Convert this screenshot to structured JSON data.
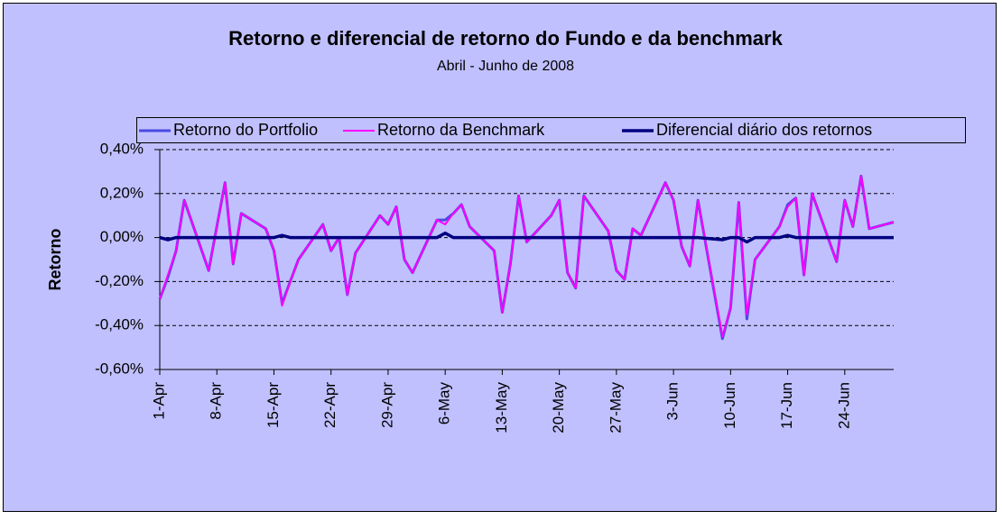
{
  "chart_data": {
    "type": "line",
    "title": "Retorno e diferencial de retorno do Fundo e da benchmark",
    "subtitle": "Abril - Junho de 2008",
    "ylabel": "Retorno",
    "x": [
      "1-Apr",
      "2-Apr",
      "3-Apr",
      "4-Apr",
      "7-Apr",
      "8-Apr",
      "9-Apr",
      "10-Apr",
      "11-Apr",
      "14-Apr",
      "15-Apr",
      "16-Apr",
      "17-Apr",
      "18-Apr",
      "21-Apr",
      "22-Apr",
      "23-Apr",
      "24-Apr",
      "25-Apr",
      "28-Apr",
      "29-Apr",
      "30-Apr",
      "1-May",
      "2-May",
      "5-May",
      "6-May",
      "7-May",
      "8-May",
      "9-May",
      "12-May",
      "13-May",
      "14-May",
      "15-May",
      "16-May",
      "19-May",
      "20-May",
      "21-May",
      "22-May",
      "23-May",
      "26-May",
      "27-May",
      "28-May",
      "29-May",
      "30-May",
      "2-Jun",
      "3-Jun",
      "4-Jun",
      "5-Jun",
      "6-Jun",
      "9-Jun",
      "10-Jun",
      "11-Jun",
      "12-Jun",
      "13-Jun",
      "16-Jun",
      "17-Jun",
      "18-Jun",
      "19-Jun",
      "20-Jun",
      "23-Jun",
      "24-Jun",
      "25-Jun",
      "26-Jun",
      "27-Jun",
      "30-Jun"
    ],
    "series": [
      {
        "name": "Retorno do Portfolio",
        "color": "#4a4ae0",
        "width": 3,
        "values": [
          -0.28,
          -0.18,
          -0.06,
          0.17,
          -0.15,
          0.05,
          0.25,
          -0.12,
          0.11,
          0.04,
          -0.06,
          -0.3,
          -0.2,
          -0.1,
          0.06,
          -0.06,
          0.0,
          -0.26,
          -0.07,
          0.1,
          0.06,
          0.14,
          -0.1,
          -0.16,
          0.08,
          0.08,
          0.11,
          0.15,
          0.05,
          -0.06,
          -0.34,
          -0.12,
          0.19,
          -0.02,
          0.1,
          0.17,
          -0.16,
          -0.23,
          0.19,
          0.03,
          -0.15,
          -0.19,
          0.04,
          0.01,
          0.25,
          0.17,
          -0.04,
          -0.13,
          0.17,
          -0.46,
          -0.32,
          0.16,
          -0.37,
          -0.1,
          0.05,
          0.15,
          0.18,
          -0.17,
          0.2,
          -0.11,
          0.17,
          0.05,
          0.28,
          0.04,
          0.07
        ]
      },
      {
        "name": "Retorno da Benchmark",
        "color": "#ff00ff",
        "width": 2,
        "values": [
          -0.28,
          -0.17,
          -0.06,
          0.17,
          -0.15,
          0.05,
          0.25,
          -0.12,
          0.11,
          0.04,
          -0.06,
          -0.31,
          -0.2,
          -0.1,
          0.06,
          -0.06,
          0.0,
          -0.26,
          -0.07,
          0.1,
          0.06,
          0.14,
          -0.1,
          -0.16,
          0.08,
          0.06,
          0.11,
          0.15,
          0.05,
          -0.06,
          -0.34,
          -0.12,
          0.19,
          -0.02,
          0.1,
          0.17,
          -0.16,
          -0.23,
          0.19,
          0.03,
          -0.15,
          -0.19,
          0.04,
          0.01,
          0.25,
          0.17,
          -0.04,
          -0.13,
          0.17,
          -0.45,
          -0.32,
          0.16,
          -0.35,
          -0.1,
          0.05,
          0.14,
          0.18,
          -0.17,
          0.2,
          -0.11,
          0.17,
          0.05,
          0.28,
          0.04,
          0.07
        ]
      },
      {
        "name": "Diferencial diário dos retornos",
        "color": "#000080",
        "width": 3.5,
        "values": [
          0.0,
          -0.01,
          0.0,
          0.0,
          0.0,
          0.0,
          0.0,
          0.0,
          0.0,
          0.0,
          0.0,
          0.01,
          0.0,
          0.0,
          0.0,
          0.0,
          0.0,
          0.0,
          0.0,
          0.0,
          0.0,
          0.0,
          0.0,
          0.0,
          0.0,
          0.02,
          0.0,
          0.0,
          0.0,
          0.0,
          0.0,
          0.0,
          0.0,
          0.0,
          0.0,
          0.0,
          0.0,
          0.0,
          0.0,
          0.0,
          0.0,
          0.0,
          0.0,
          0.0,
          0.0,
          0.0,
          0.0,
          0.0,
          0.0,
          -0.01,
          0.0,
          0.0,
          -0.02,
          0.0,
          0.0,
          0.01,
          0.0,
          0.0,
          0.0,
          0.0,
          0.0,
          0.0,
          0.0,
          0.0,
          0.0
        ]
      }
    ],
    "xlim": [
      "1-Apr",
      "30-Jun"
    ],
    "xticks": [
      "1-Apr",
      "8-Apr",
      "15-Apr",
      "22-Apr",
      "29-Apr",
      "6-May",
      "13-May",
      "20-May",
      "27-May",
      "3-Jun",
      "10-Jun",
      "17-Jun",
      "24-Jun"
    ],
    "ylim": [
      -0.6,
      0.4
    ],
    "yticks": [
      {
        "value": -0.6,
        "label": "-0,60%"
      },
      {
        "value": -0.4,
        "label": "-0,40%"
      },
      {
        "value": -0.2,
        "label": "-0,20%"
      },
      {
        "value": 0,
        "label": "0,00%"
      },
      {
        "value": 0.2,
        "label": "0,20%"
      },
      {
        "value": 0.4,
        "label": "0,40%"
      }
    ],
    "grid": true,
    "legend": "top",
    "background": "#c0c0ff"
  }
}
